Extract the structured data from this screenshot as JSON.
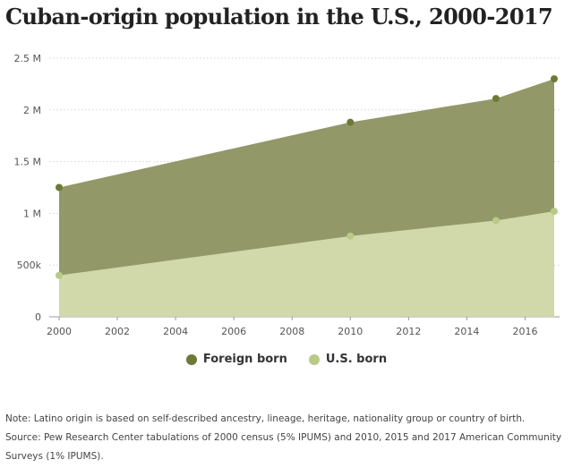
{
  "header": {
    "title": "Cuban-origin population in the U.S., 2000-2017"
  },
  "legend": [
    {
      "label": "Foreign born",
      "color": "#6b7a35"
    },
    {
      "label": "U.S. born",
      "color": "#b9c986"
    }
  ],
  "notes": {
    "note": "Note: Latino origin is based on self-described ancestry, lineage, heritage, nationality group or country of birth.",
    "source": "Source: Pew Research Center tabulations of 2000 census (5% IPUMS) and 2010, 2015 and 2017 American Community Surveys (1% IPUMS)."
  },
  "chart_data": {
    "type": "area",
    "stacked": true,
    "title": "Cuban-origin population in the U.S., 2000-2017",
    "x": [
      2000,
      2010,
      2015,
      2017
    ],
    "xlim": [
      2000,
      2017
    ],
    "x_ticks": [
      2000,
      2002,
      2004,
      2006,
      2008,
      2010,
      2012,
      2014,
      2016
    ],
    "x_tick_labels": [
      "2000",
      "2002",
      "2004",
      "2006",
      "2008",
      "2010",
      "2012",
      "2014",
      "2016"
    ],
    "ylim": [
      0,
      2500000
    ],
    "y_ticks": [
      0,
      500000,
      1000000,
      1500000,
      2000000,
      2500000
    ],
    "y_tick_labels": [
      "0",
      "500k",
      "1 M",
      "1.5 M",
      "2 M",
      "2.5 M"
    ],
    "grid": true,
    "legend_position": "bottom",
    "series": [
      {
        "name": "U.S. born",
        "values": [
          400000,
          780000,
          930000,
          1020000
        ],
        "fill": "#d1d8a9",
        "marker": "#b9c986"
      },
      {
        "name": "Foreign born",
        "values": [
          850000,
          1100000,
          1180000,
          1280000
        ],
        "fill": "#939868",
        "marker": "#6b7a35"
      }
    ],
    "totals": [
      1250000,
      1880000,
      2110000,
      2300000
    ]
  }
}
